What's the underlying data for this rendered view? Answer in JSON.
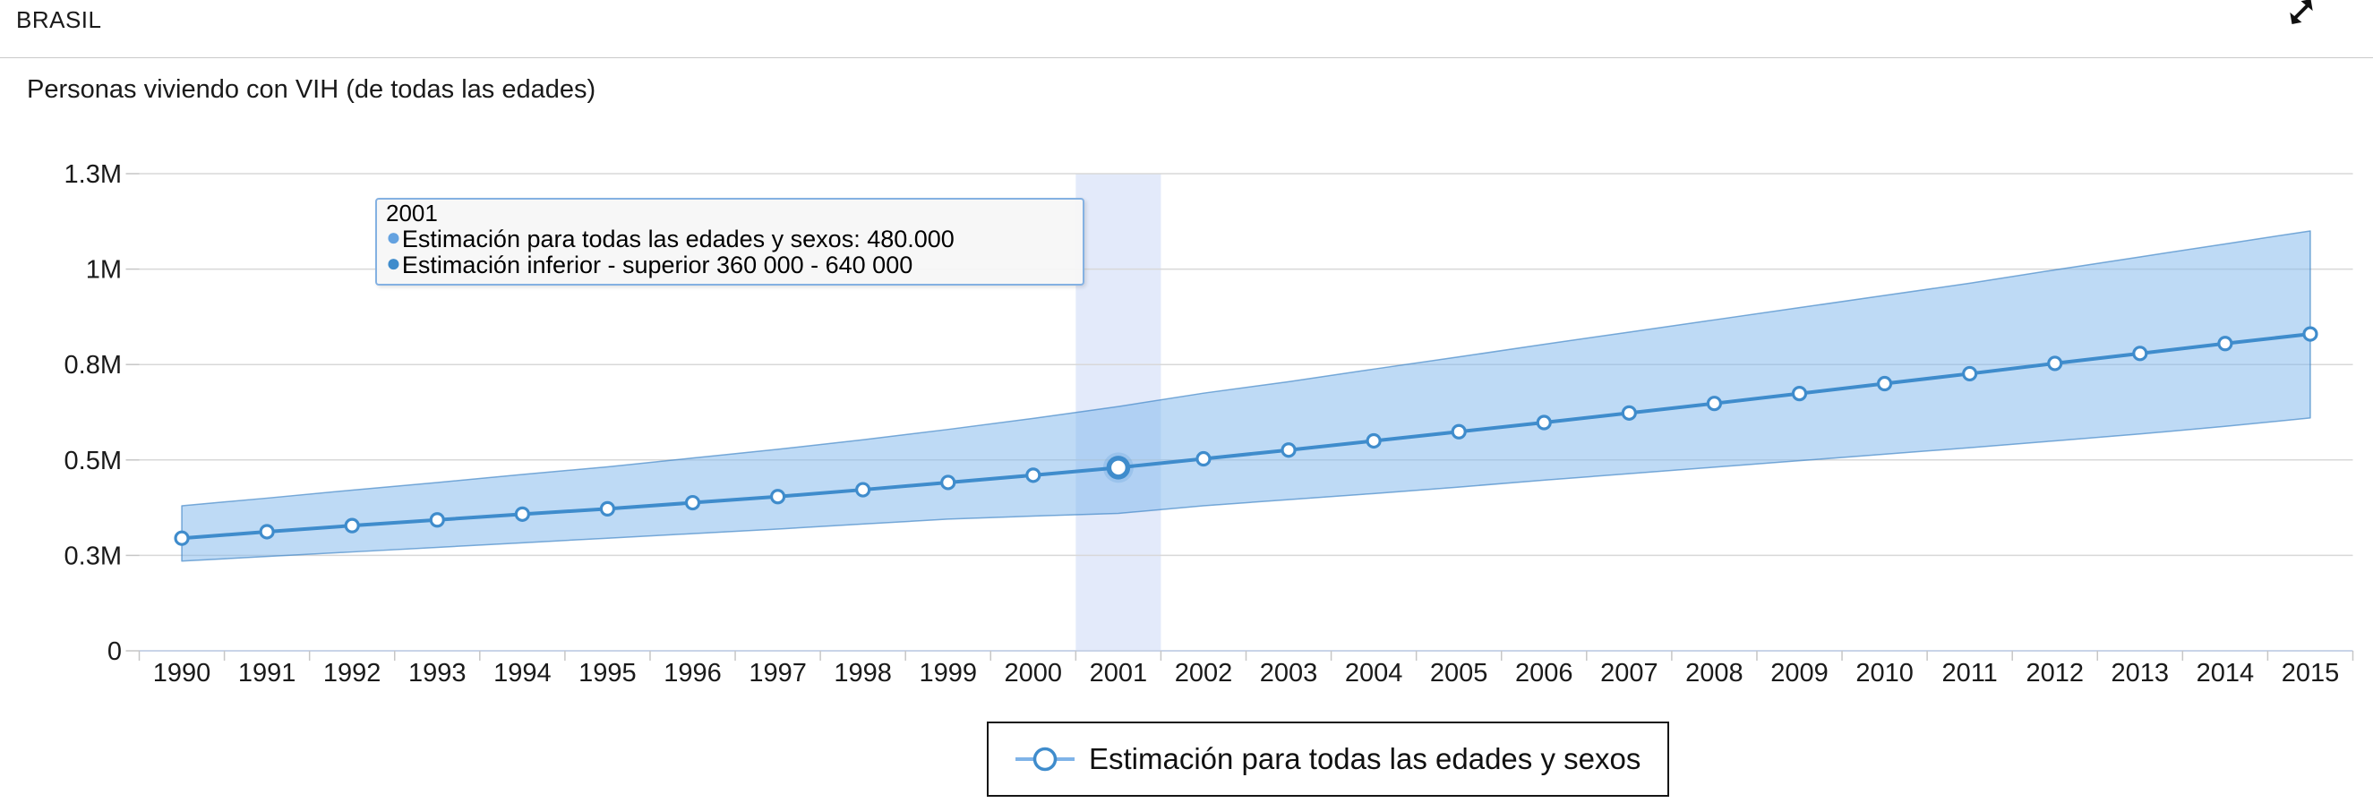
{
  "header": {
    "title": "BRASIL",
    "expand_icon": "expand-arrows"
  },
  "chart": {
    "title": "Personas viviendo con VIH (de todas las edades)"
  },
  "tooltip": {
    "title": "2001",
    "rows": [
      {
        "bullet": "●",
        "color": "#64a2e0",
        "text": "Estimación para todas las edades y sexos: 480.000"
      },
      {
        "bullet": "●",
        "color": "#3f8ccc",
        "text": "Estimación inferior - superior 360 000 - 640 000"
      }
    ]
  },
  "legend": {
    "label": "Estimación para todas las edades y sexos"
  },
  "colors": {
    "series_line": "#3f8ccc",
    "marker_fill": "#ffffff",
    "marker_halo": "rgba(63,140,204,0.18)",
    "band_fill": "rgba(125,182,236,0.5)",
    "band_edge": "rgba(60,130,196,0.65)",
    "highlight_column": "#e3eafa",
    "gridline": "#d8d8d8",
    "axis_line": "#c9d4e8",
    "tick": "#c6c6c6",
    "legend_line": "#7fb3e8",
    "tooltip_border": "#84b1e2",
    "text": "#1a1a1a"
  },
  "chart_data": {
    "type": "line",
    "title": "Personas viviendo con VIH (de todas las edades)",
    "x": [
      1990,
      1991,
      1992,
      1993,
      1994,
      1995,
      1996,
      1997,
      1998,
      1999,
      2000,
      2001,
      2002,
      2003,
      2004,
      2005,
      2006,
      2007,
      2008,
      2009,
      2010,
      2011,
      2012,
      2013,
      2014,
      2015
    ],
    "series": [
      {
        "name": "Estimación para todas las edades y sexos",
        "type": "line",
        "values": [
          295000,
          312000,
          328000,
          343000,
          358000,
          372000,
          388000,
          404000,
          422000,
          441000,
          460000,
          480000,
          503000,
          526000,
          550000,
          574000,
          598000,
          623000,
          648000,
          674000,
          700000,
          726000,
          753000,
          779000,
          805000,
          830000
        ]
      },
      {
        "name": "Estimación inferior - superior",
        "type": "arearange",
        "lower": [
          235000,
          247000,
          259000,
          271000,
          283000,
          295000,
          307000,
          319000,
          332000,
          345000,
          353000,
          360000,
          380000,
          396000,
          412000,
          429000,
          447000,
          464000,
          481000,
          498000,
          515000,
          532000,
          550000,
          568000,
          588000,
          610000
        ],
        "upper": [
          380000,
          400000,
          421000,
          441000,
          462000,
          482000,
          505000,
          528000,
          553000,
          580000,
          609000,
          640000,
          675000,
          705000,
          738000,
          770000,
          803000,
          835000,
          867000,
          899000,
          931000,
          963000,
          998000,
          1032000,
          1066000,
          1100000
        ]
      }
    ],
    "ylim": [
      0,
      1300000
    ],
    "yticks": {
      "values": [
        0,
        250000,
        500000,
        750000,
        1000000,
        1250000
      ],
      "labels": [
        "0",
        "0.3M",
        "0.5M",
        "0.8M",
        "1M",
        "1.3M"
      ]
    },
    "highlighted_x": 2001,
    "highlighted_point": {
      "year": "2001",
      "estimate": "480.000",
      "range": "360 000 - 640 000"
    },
    "grid": true,
    "legend_position": "bottom-center"
  }
}
